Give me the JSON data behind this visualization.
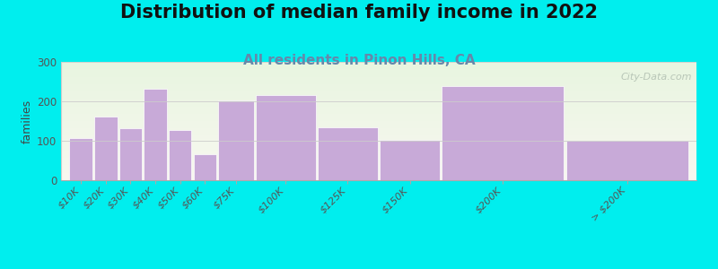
{
  "title": "Distribution of median family income in 2022",
  "subtitle": "All residents in Pinon Hills, CA",
  "categories": [
    "$10K",
    "$20K",
    "$30K",
    "$40K",
    "$50K",
    "$60K",
    "$75K",
    "$100K",
    "$125K",
    "$150K",
    "$200K",
    "> $200K"
  ],
  "values": [
    107,
    162,
    132,
    232,
    128,
    65,
    202,
    215,
    135,
    103,
    238,
    100
  ],
  "bar_color": "#c8aad8",
  "bar_edge_color": "#ffffff",
  "background_outer": "#00eeee",
  "background_plot_top": "#e8f5e0",
  "background_plot_bottom": "#f8f8f0",
  "ylabel": "families",
  "ylim": [
    0,
    300
  ],
  "yticks": [
    0,
    100,
    200,
    300
  ],
  "title_fontsize": 15,
  "subtitle_fontsize": 11,
  "subtitle_color": "#6688aa",
  "watermark_text": "City-Data.com",
  "watermark_color": "#b0beb0",
  "tick_label_rotation": 45,
  "tick_label_fontsize": 8,
  "ylabel_fontsize": 9,
  "bar_widths": [
    1,
    1,
    1,
    1,
    1,
    1,
    1.5,
    2.5,
    2.5,
    2.5,
    5,
    5
  ],
  "bar_lefts": [
    0,
    1,
    2,
    3,
    4,
    5,
    6,
    7.5,
    10,
    12.5,
    15,
    20
  ],
  "total_width": 25
}
